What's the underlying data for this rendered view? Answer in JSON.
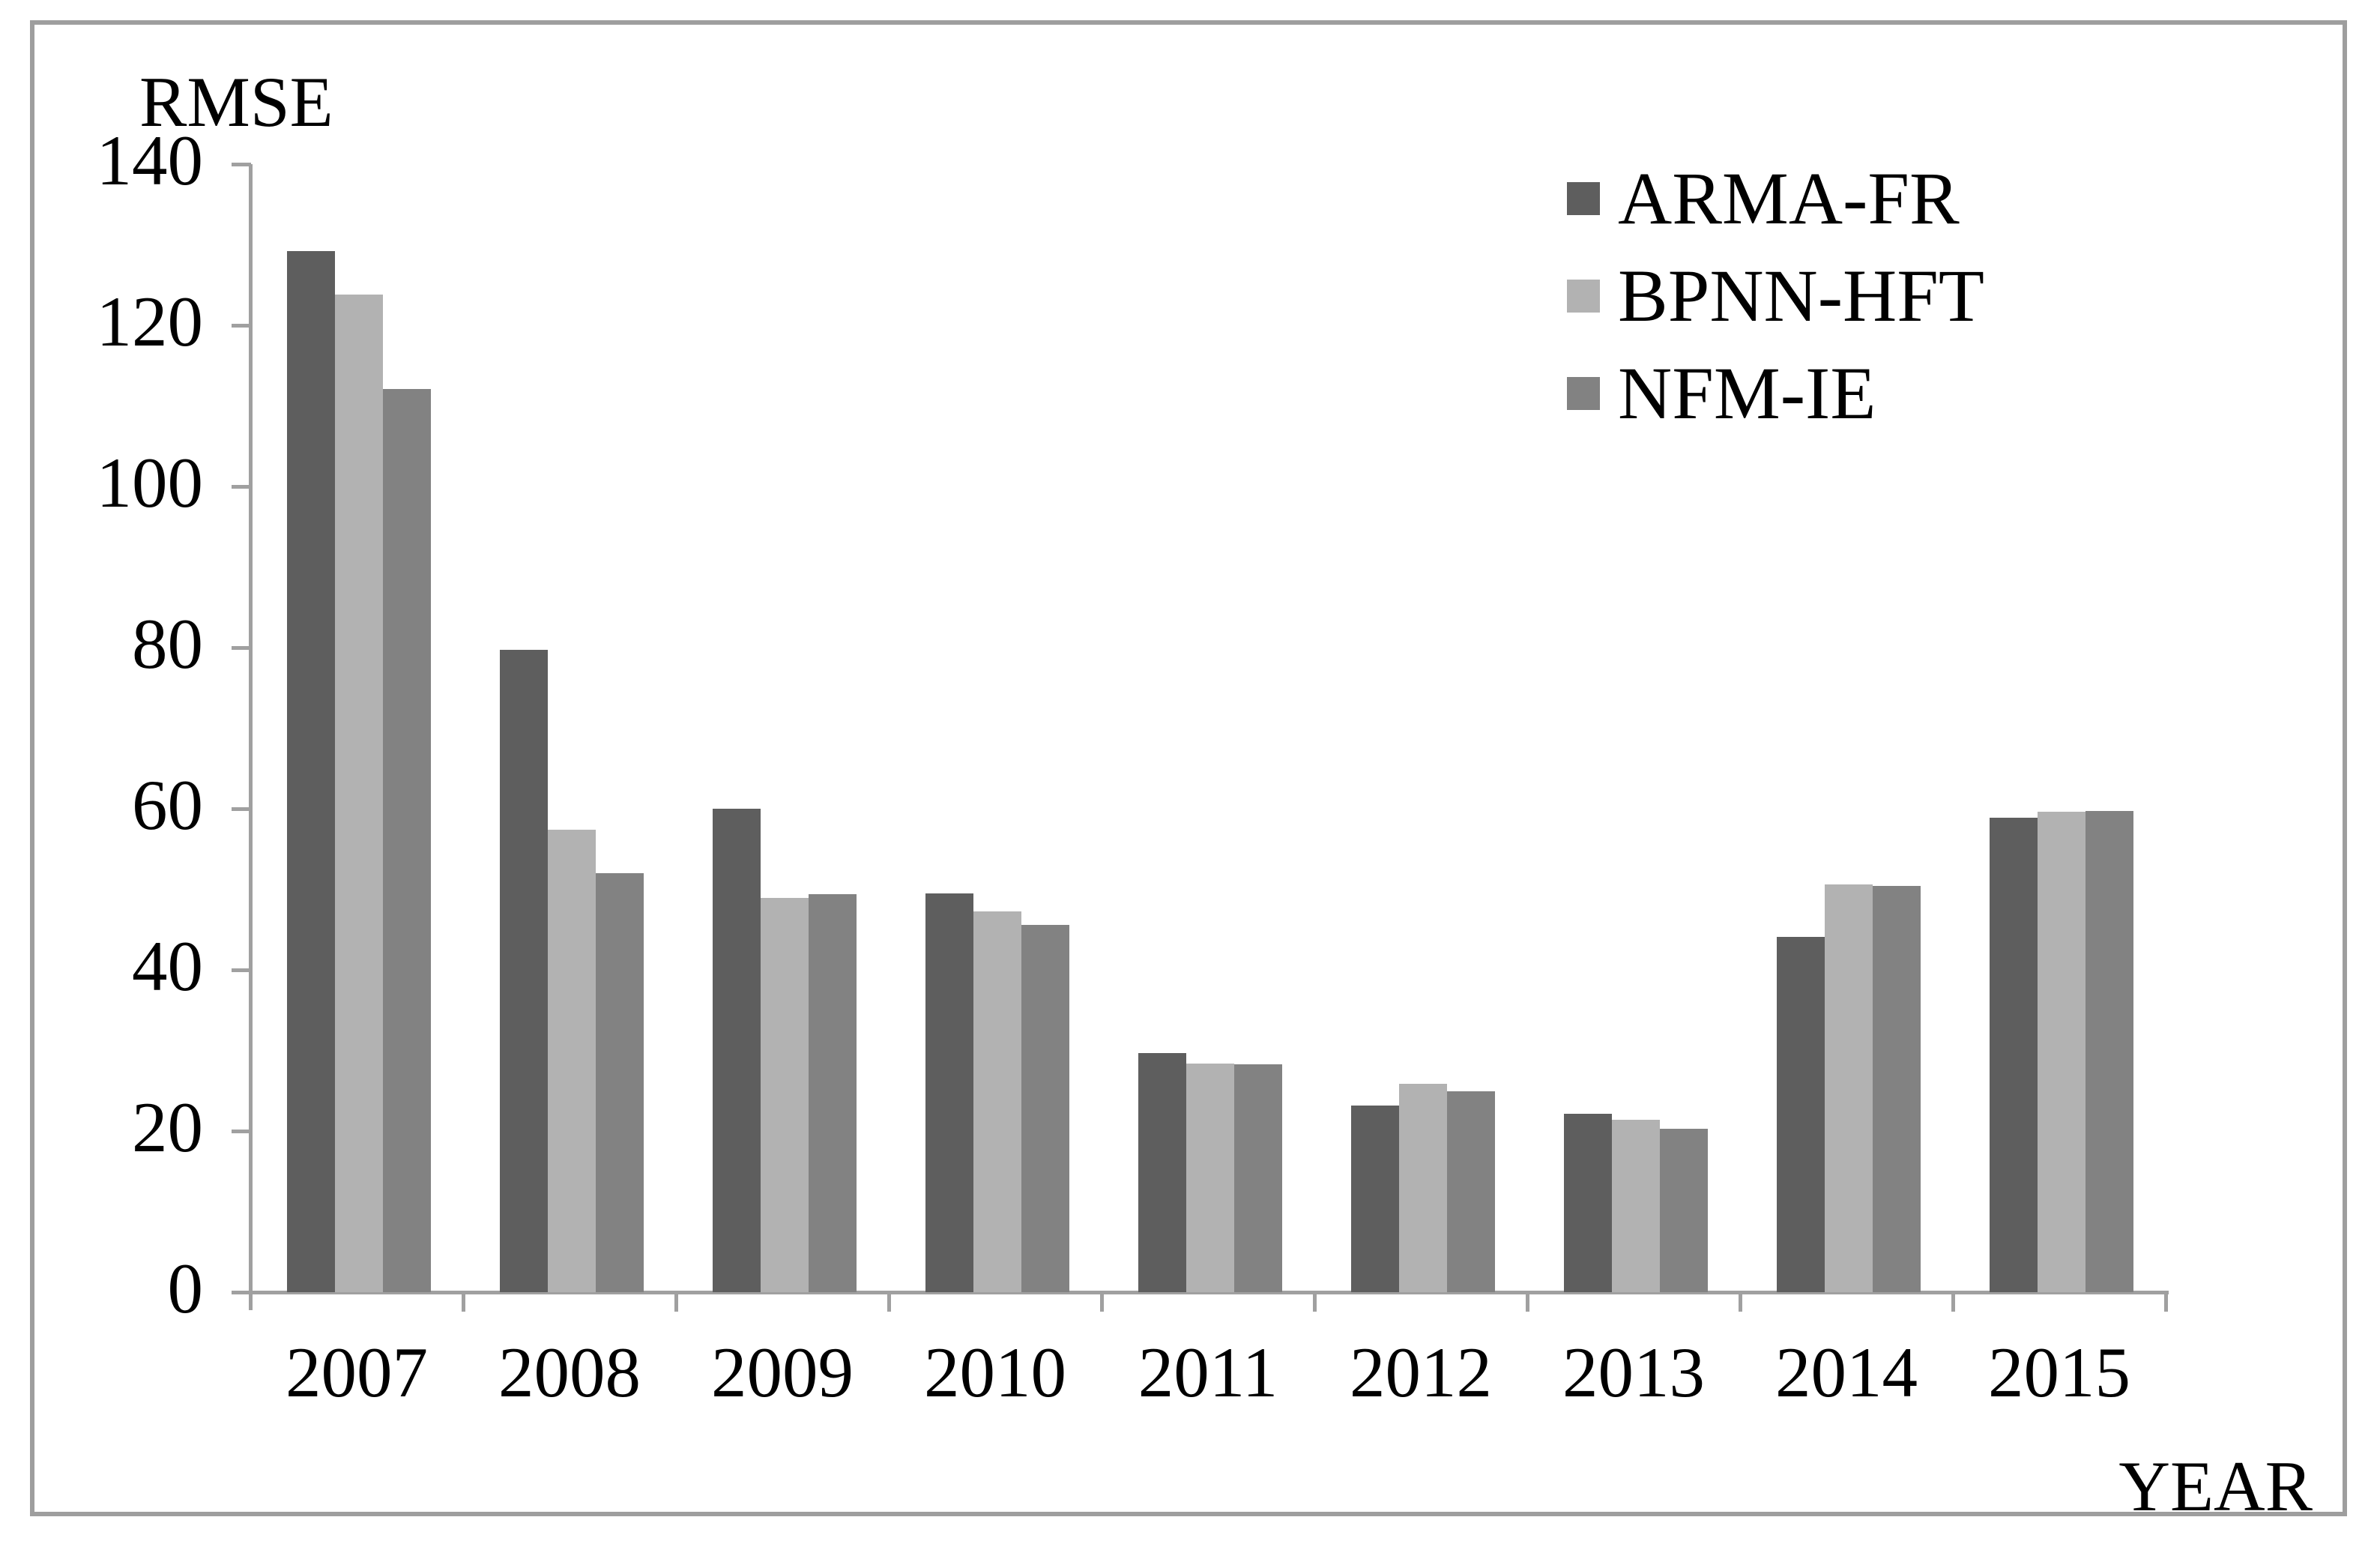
{
  "chart": {
    "y_axis_title": "RMSE",
    "x_axis_title": "YEAR"
  },
  "chart_data": {
    "type": "bar",
    "title": "RMSE",
    "xlabel": "YEAR",
    "ylabel": "RMSE",
    "categories": [
      "2007",
      "2008",
      "2009",
      "2010",
      "2011",
      "2012",
      "2013",
      "2014",
      "2015"
    ],
    "series": [
      {
        "name": "ARMA-FR",
        "color": "#5e5e5e",
        "values": [
          129.2,
          79.7,
          60.0,
          49.5,
          29.7,
          23.2,
          22.1,
          44.1,
          58.9
        ]
      },
      {
        "name": "BPNN-HFT",
        "color": "#b2b2b2",
        "values": [
          123.8,
          57.4,
          48.9,
          47.3,
          28.4,
          25.9,
          21.4,
          50.6,
          59.6
        ]
      },
      {
        "name": "NFM-IE",
        "color": "#828282",
        "values": [
          112.1,
          52.0,
          49.4,
          45.6,
          28.3,
          24.9,
          20.3,
          50.4,
          59.7
        ]
      }
    ],
    "ylim": [
      0,
      140
    ],
    "yticks": [
      0,
      20,
      40,
      60,
      80,
      100,
      120,
      140
    ],
    "grid": false,
    "legend_position": "upper right"
  },
  "colors": {
    "axis": "#a0a0a0",
    "frame": "#9e9e9e",
    "text": "#000000",
    "background": "#ffffff"
  }
}
